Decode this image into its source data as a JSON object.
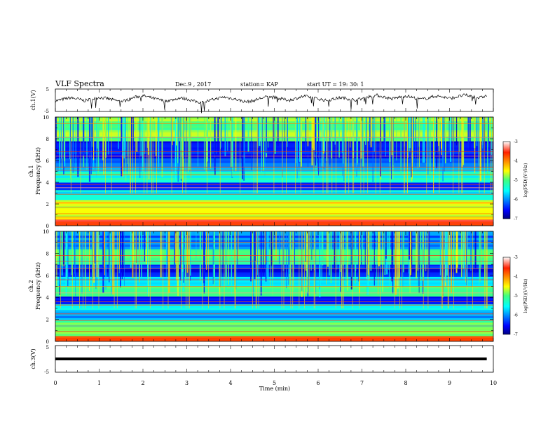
{
  "header": {
    "title": "VLF Spectra",
    "date": "Dec.9  , 2017",
    "station": "station= KAP",
    "start": "start  UT  =   19: 30: 1"
  },
  "chart_data": [
    {
      "type": "line",
      "name": "ch1-waveform",
      "ylabel": "ch.1(V)",
      "xlim": [
        0,
        10
      ],
      "ylim": [
        -5,
        5
      ],
      "ytick_labels": [
        "5",
        "-5"
      ],
      "y_signal": [
        -0.3,
        0.4,
        1.1,
        0.6,
        -0.2,
        0.5,
        1.3,
        0.8,
        0.1,
        -0.6,
        0.3,
        1.5,
        2.0,
        1.2,
        0.4,
        -0.4,
        0.2,
        1.0,
        0.6,
        -0.5,
        -1.0,
        -0.2,
        0.7,
        1.4,
        0.9,
        0.2,
        -0.7,
        -0.3,
        0.8,
        1.6,
        1.2,
        0.5,
        0.0,
        0.9,
        1.8,
        1.3,
        0.6,
        -0.1,
        0.5,
        1.2,
        0.7,
        0.1,
        0.8,
        1.7,
        2.2,
        1.4,
        0.6,
        1.3,
        2.0,
        1.1,
        0.4,
        1.0,
        1.9,
        1.5,
        0.8,
        1.6,
        2.3,
        1.7,
        1.0,
        2.1
      ]
    },
    {
      "type": "heatmap",
      "name": "ch1-spectrogram",
      "ylabel_top": "ch.1",
      "ylabel_bottom": "Frequency  (kHz)",
      "xlim": [
        0,
        10
      ],
      "ylim": [
        0,
        10
      ],
      "ytick_labels": [
        "0",
        "2",
        "4",
        "6",
        "8",
        "10"
      ],
      "z_range": [
        -7,
        -3
      ],
      "bands": [
        {
          "from": 0.0,
          "to": 0.6,
          "level": -3.6
        },
        {
          "from": 0.6,
          "to": 2.4,
          "level": -4.6
        },
        {
          "from": 2.4,
          "to": 3.3,
          "level": -5.6
        },
        {
          "from": 3.3,
          "to": 4.0,
          "level": -6.3
        },
        {
          "from": 4.0,
          "to": 5.0,
          "level": -5.4
        },
        {
          "from": 5.0,
          "to": 5.8,
          "level": -5.8
        },
        {
          "from": 5.8,
          "to": 7.8,
          "level": -6.4
        },
        {
          "from": 7.8,
          "to": 10.0,
          "level": -4.9
        }
      ],
      "lines_khz": [
        0.3,
        0.8,
        1.1,
        1.7,
        2.1,
        2.9,
        3.5,
        3.8,
        4.7,
        5.1,
        5.4,
        6.4,
        6.8,
        8.1,
        9.4
      ],
      "colorbar": {
        "label": "log(PSD)(V²/Hz)",
        "tick_labels": [
          "-3",
          "-4",
          "-5",
          "-6",
          "-7"
        ]
      }
    },
    {
      "type": "heatmap",
      "name": "ch2-spectrogram",
      "ylabel_top": "ch.2",
      "ylabel_bottom": "Frequency  (kHz)",
      "xlim": [
        0,
        10
      ],
      "ylim": [
        0,
        10
      ],
      "ytick_labels": [
        "0",
        "2",
        "4",
        "6",
        "8",
        "10"
      ],
      "z_range": [
        -7,
        -3
      ],
      "bands": [
        {
          "from": 0.0,
          "to": 0.5,
          "level": -3.8
        },
        {
          "from": 0.5,
          "to": 1.9,
          "level": -5.0
        },
        {
          "from": 1.9,
          "to": 2.9,
          "level": -6.0
        },
        {
          "from": 2.9,
          "to": 3.4,
          "level": -5.5
        },
        {
          "from": 3.4,
          "to": 4.1,
          "level": -6.4
        },
        {
          "from": 4.1,
          "to": 5.0,
          "level": -5.0
        },
        {
          "from": 5.0,
          "to": 5.9,
          "level": -5.8
        },
        {
          "from": 5.9,
          "to": 7.0,
          "level": -6.5
        },
        {
          "from": 7.0,
          "to": 8.4,
          "level": -5.1
        },
        {
          "from": 8.4,
          "to": 10.0,
          "level": -6.1
        }
      ],
      "lines_khz": [
        0.4,
        0.9,
        1.4,
        1.9,
        2.5,
        3.3,
        3.6,
        4.4,
        5.0,
        5.6,
        6.6,
        7.3,
        7.8,
        9.0
      ],
      "colorbar": {
        "label": "log(PSD)(V²/Hz)",
        "tick_labels": [
          "-3",
          "-4",
          "-5",
          "-6",
          "-7"
        ]
      }
    },
    {
      "type": "line",
      "name": "ch3-waveform",
      "ylabel": "ch.3(V)",
      "xlim": [
        0,
        10
      ],
      "ylim": [
        -5,
        5
      ],
      "ytick_labels": [
        "5",
        "-5"
      ],
      "y_constant": 0,
      "x_end": 9.85,
      "xlabel": "Time  (min)",
      "xtick_labels": [
        "0",
        "1",
        "2",
        "3",
        "4",
        "5",
        "6",
        "7",
        "8",
        "9",
        "10"
      ]
    }
  ]
}
